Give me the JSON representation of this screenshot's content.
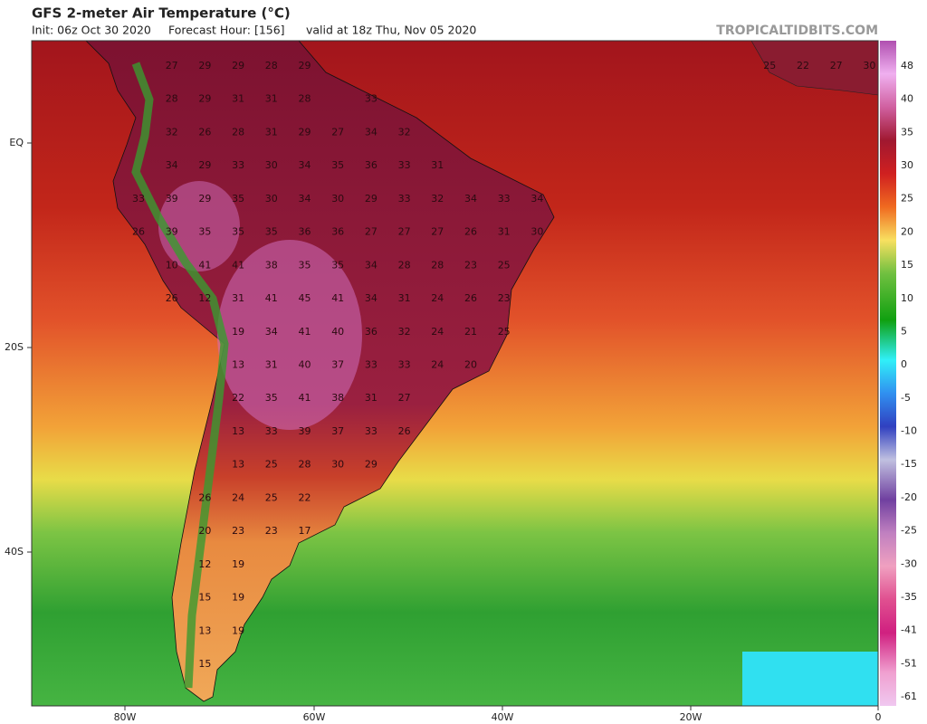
{
  "header": {
    "title": "GFS 2-meter Air Temperature (°C)",
    "init": "Init: 06z Oct 30 2020",
    "forecast_hour": "Forecast Hour: [156]",
    "valid": "valid at 18z Thu, Nov 05 2020",
    "site": "TROPICALTIDBITS.COM"
  },
  "axes": {
    "lon_labels": [
      "80W",
      "60W",
      "40W",
      "20W",
      "0"
    ],
    "lat_labels": [
      "EQ",
      "20S",
      "40S"
    ]
  },
  "colorbar": {
    "labels": [
      "48",
      "40",
      "35",
      "30",
      "25",
      "20",
      "15",
      "10",
      "5",
      "0",
      "-5",
      "-10",
      "-15",
      "-20",
      "-25",
      "-30",
      "-35",
      "-41",
      "-51",
      "-61"
    ]
  },
  "map": {
    "rows": [
      [
        null,
        27,
        29,
        29,
        28,
        29,
        null,
        null,
        null,
        null,
        null,
        null,
        null,
        null,
        null,
        null,
        null,
        null,
        null,
        25,
        22,
        27,
        30
      ],
      [
        null,
        28,
        29,
        31,
        31,
        28,
        null,
        33,
        null,
        null,
        null,
        null,
        null
      ],
      [
        null,
        32,
        26,
        28,
        31,
        29,
        27,
        34,
        32,
        null,
        null,
        null,
        null
      ],
      [
        null,
        34,
        29,
        33,
        30,
        34,
        35,
        36,
        33,
        31,
        null,
        null,
        null
      ],
      [
        33,
        39,
        29,
        35,
        30,
        34,
        30,
        29,
        33,
        32,
        34,
        33,
        34
      ],
      [
        26,
        39,
        35,
        35,
        35,
        36,
        36,
        27,
        27,
        27,
        26,
        31,
        30
      ],
      [
        null,
        10,
        41,
        41,
        38,
        35,
        35,
        34,
        28,
        28,
        23,
        25,
        null
      ],
      [
        null,
        26,
        12,
        31,
        41,
        45,
        41,
        34,
        31,
        24,
        26,
        23,
        null
      ],
      [
        null,
        null,
        null,
        19,
        34,
        41,
        40,
        36,
        32,
        24,
        21,
        25,
        null
      ],
      [
        null,
        null,
        null,
        13,
        31,
        40,
        37,
        33,
        33,
        24,
        20,
        null,
        null
      ],
      [
        null,
        null,
        null,
        22,
        35,
        41,
        38,
        31,
        27,
        null,
        null,
        null,
        null
      ],
      [
        null,
        null,
        null,
        13,
        33,
        39,
        37,
        33,
        26,
        null,
        null,
        null,
        null
      ],
      [
        null,
        null,
        null,
        13,
        25,
        28,
        30,
        29,
        null,
        null,
        null,
        null,
        null
      ],
      [
        null,
        null,
        26,
        24,
        25,
        22,
        null,
        null,
        null,
        null,
        null,
        null,
        null
      ],
      [
        null,
        null,
        20,
        23,
        23,
        17,
        null,
        null,
        null,
        null,
        null,
        null,
        null
      ],
      [
        null,
        null,
        12,
        19,
        null,
        null,
        null,
        null,
        null,
        null,
        null,
        null,
        null
      ],
      [
        null,
        null,
        15,
        19,
        null,
        null,
        null,
        null,
        null,
        null,
        null,
        null,
        null
      ],
      [
        null,
        null,
        13,
        19,
        null,
        null,
        null,
        null,
        null,
        null,
        null,
        null,
        null
      ],
      [
        null,
        null,
        15,
        null,
        null,
        null,
        null,
        null,
        null,
        null,
        null,
        null,
        null
      ]
    ]
  }
}
